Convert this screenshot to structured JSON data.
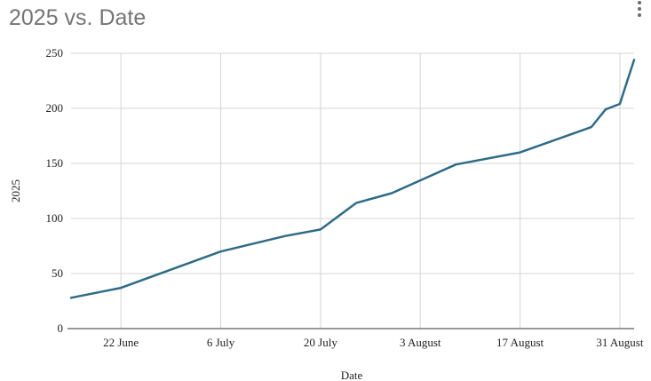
{
  "chart_data": {
    "type": "line",
    "title": "2025 vs. Date",
    "xlabel": "Date",
    "ylabel": "2025",
    "ylim": [
      0,
      250
    ],
    "xlim": [
      "2025-06-15",
      "2025-09-02"
    ],
    "yticks": [
      0,
      50,
      100,
      150,
      200,
      250
    ],
    "xticks": [
      {
        "date": "2025-06-22",
        "label": "22 June"
      },
      {
        "date": "2025-07-06",
        "label": "6 July"
      },
      {
        "date": "2025-07-20",
        "label": "20 July"
      },
      {
        "date": "2025-08-03",
        "label": "3 August"
      },
      {
        "date": "2025-08-17",
        "label": "17 August"
      },
      {
        "date": "2025-08-31",
        "label": "31 August"
      }
    ],
    "grid": true,
    "legend": "none",
    "series": [
      {
        "color": "#2e6b87",
        "points": [
          {
            "x": "2025-06-15",
            "y": 28
          },
          {
            "x": "2025-06-22",
            "y": 37
          },
          {
            "x": "2025-07-06",
            "y": 70
          },
          {
            "x": "2025-07-15",
            "y": 84
          },
          {
            "x": "2025-07-20",
            "y": 90
          },
          {
            "x": "2025-07-25",
            "y": 114
          },
          {
            "x": "2025-07-30",
            "y": 123
          },
          {
            "x": "2025-08-08",
            "y": 149
          },
          {
            "x": "2025-08-17",
            "y": 160
          },
          {
            "x": "2025-08-27",
            "y": 183
          },
          {
            "x": "2025-08-29",
            "y": 199
          },
          {
            "x": "2025-08-31",
            "y": 204
          },
          {
            "x": "2025-09-02",
            "y": 244
          }
        ]
      }
    ]
  }
}
